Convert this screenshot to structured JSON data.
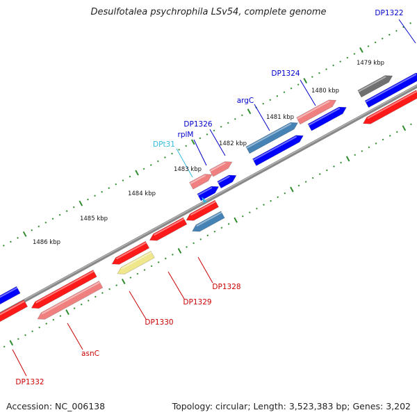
{
  "title": "Desulfotalea psychrophila LSv54, complete genome",
  "footer": {
    "accession_label": "Accession:",
    "accession": "NC_006138",
    "topology_label": "Topology:",
    "topology": "circular;",
    "length_label": "Length:",
    "length": "3,523,383 bp;",
    "genes_label": "Genes:",
    "genes": "3,202"
  },
  "ticks": [
    "1479 kbp",
    "1480 kbp",
    "1481 kbp",
    "1482 kbp",
    "1483 kbp",
    "1484 kbp",
    "1485 kbp",
    "1486 kbp"
  ],
  "colors": {
    "backbone": "#888888",
    "tick_dots": "#2e8b2e",
    "cds_red": "#ff1a1a",
    "cds_pink": "#f08080",
    "cds_blue": "#0000ff",
    "cds_steel": "#4682b4",
    "cds_yellow": "#f0e68c",
    "cds_gray": "#707070",
    "label_blue": "#0000cc",
    "label_red": "#cc0000",
    "label_cyan": "#33bbdd"
  },
  "genes": [
    {
      "label": "DP1322",
      "color": "cds_gray",
      "label_color": "label_blue"
    },
    {
      "label": "DP1324",
      "color": "cds_pink",
      "label_color": "label_blue"
    },
    {
      "label": "argC",
      "color": "cds_steel",
      "label_color": "label_blue"
    },
    {
      "label": "DP1326",
      "color": "cds_pink",
      "label_color": "label_blue"
    },
    {
      "label": "rplM",
      "color": "cds_pink",
      "label_color": "label_blue"
    },
    {
      "label": "DPt31",
      "color": "label_cyan",
      "label_color": "label_cyan"
    },
    {
      "label": "DP1328",
      "color": "cds_steel",
      "label_color": "label_red"
    },
    {
      "label": "DP1329",
      "color": "cds_red",
      "label_color": "label_red"
    },
    {
      "label": "DP1330",
      "color": "cds_yellow",
      "label_color": "label_red"
    },
    {
      "label": "asnC",
      "color": "cds_pink",
      "label_color": "label_red"
    },
    {
      "label": "DP1332",
      "color": "cds_red",
      "label_color": "label_red"
    }
  ]
}
